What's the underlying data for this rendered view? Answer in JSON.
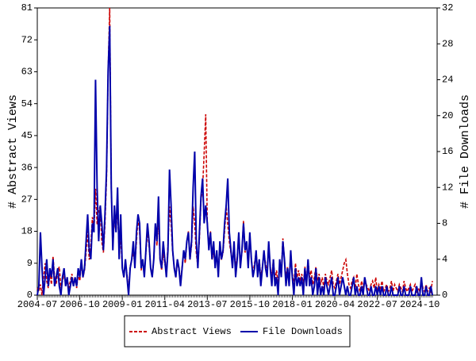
{
  "chart_data": {
    "type": "line",
    "categories": [
      "2004-07",
      null,
      null,
      null,
      null,
      null,
      null,
      null,
      null,
      null,
      null,
      null,
      null,
      null,
      null,
      null,
      null,
      null,
      null,
      null,
      null,
      null,
      null,
      null,
      null,
      null,
      null,
      "2006-10",
      null,
      null,
      null,
      null,
      null,
      null,
      null,
      null,
      null,
      null,
      null,
      null,
      null,
      null,
      null,
      null,
      null,
      null,
      null,
      null,
      null,
      null,
      null,
      null,
      null,
      null,
      "2009-01",
      null,
      null,
      null,
      null,
      null,
      null,
      null,
      null,
      null,
      null,
      null,
      null,
      null,
      null,
      null,
      null,
      null,
      null,
      null,
      null,
      null,
      null,
      null,
      null,
      null,
      null,
      "2011-04",
      null,
      null,
      null,
      null,
      null,
      null,
      null,
      null,
      null,
      null,
      null,
      null,
      null,
      null,
      null,
      null,
      null,
      null,
      null,
      null,
      null,
      null,
      null,
      null,
      null,
      null,
      "2013-07",
      null,
      null,
      null,
      null,
      null,
      null,
      null,
      null,
      null,
      null,
      null,
      null,
      null,
      null,
      null,
      null,
      null,
      null,
      null,
      null,
      null,
      null,
      null,
      null,
      null,
      null,
      "2015-10",
      null,
      null,
      null,
      null,
      null,
      null,
      null,
      null,
      null,
      null,
      null,
      null,
      null,
      null,
      null,
      null,
      null,
      null,
      null,
      null,
      null,
      null,
      null,
      null,
      null,
      null,
      "2018-01",
      null,
      null,
      null,
      null,
      null,
      null,
      null,
      null,
      null,
      null,
      null,
      null,
      null,
      null,
      null,
      null,
      null,
      null,
      null,
      null,
      null,
      null,
      null,
      null,
      null,
      null,
      "2020-04",
      null,
      null,
      null,
      null,
      null,
      null,
      null,
      null,
      null,
      null,
      null,
      null,
      null,
      null,
      null,
      null,
      null,
      null,
      null,
      null,
      null,
      null,
      null,
      null,
      null,
      null,
      "2022-07",
      null,
      null,
      null,
      null,
      null,
      null,
      null,
      null,
      null,
      null,
      null,
      null,
      null,
      null,
      null,
      null,
      null,
      null,
      null,
      null,
      null,
      null,
      null,
      null,
      null,
      null,
      "2024-10",
      null,
      null,
      null,
      null,
      null,
      null,
      null,
      null
    ],
    "series": [
      {
        "name": "Abstract Views",
        "color": "#cc0000",
        "style": "dashed",
        "axis": "y",
        "values": [
          2,
          1,
          3,
          0,
          5,
          9,
          4,
          2,
          6,
          3,
          11,
          5,
          3,
          7,
          8,
          2,
          4,
          6,
          3,
          5,
          2,
          4,
          6,
          3,
          5,
          2,
          6,
          4,
          9,
          5,
          7,
          12,
          18,
          10,
          14,
          22,
          18,
          30,
          20,
          24,
          25,
          15,
          12,
          20,
          33,
          63,
          81,
          30,
          14,
          22,
          18,
          25,
          12,
          16,
          8,
          5,
          9,
          6,
          1,
          8,
          10,
          12,
          9,
          15,
          22,
          18,
          7,
          10,
          6,
          12,
          18,
          14,
          8,
          5,
          10,
          20,
          14,
          22,
          10,
          7,
          12,
          9,
          6,
          14,
          25,
          20,
          12,
          8,
          5,
          10,
          7,
          4,
          8,
          12,
          9,
          15,
          18,
          10,
          14,
          25,
          20,
          12,
          8,
          16,
          27,
          30,
          40,
          51,
          20,
          14,
          18,
          10,
          12,
          9,
          11,
          8,
          13,
          10,
          12,
          18,
          25,
          20,
          15,
          12,
          10,
          14,
          8,
          11,
          16,
          9,
          12,
          21,
          12,
          15,
          8,
          17,
          10,
          6,
          9,
          12,
          7,
          10,
          5,
          8,
          12,
          9,
          6,
          14,
          8,
          5,
          10,
          4,
          7,
          3,
          9,
          6,
          16,
          10,
          5,
          8,
          4,
          12,
          6,
          3,
          9,
          5,
          7,
          4,
          6,
          3,
          8,
          4,
          10,
          5,
          7,
          3,
          5,
          8,
          4,
          6,
          3,
          5,
          2,
          6,
          4,
          3,
          5,
          7,
          3,
          2,
          4,
          6,
          3,
          5,
          7,
          9,
          10,
          6,
          3,
          2,
          4,
          5,
          2,
          6,
          3,
          1,
          4,
          2,
          5,
          3,
          2,
          1,
          3,
          4,
          2,
          5,
          1,
          3,
          2,
          4,
          1,
          2,
          3,
          1,
          2,
          4,
          1,
          3,
          2,
          1,
          3,
          2,
          1,
          4,
          2,
          1,
          2,
          3,
          1,
          2,
          3,
          1,
          2,
          1,
          4,
          2,
          1,
          3,
          1,
          2,
          1,
          4
        ]
      },
      {
        "name": "File Downloads",
        "color": "#0000aa",
        "style": "solid",
        "axis": "y2",
        "values": [
          0,
          1,
          7,
          3,
          0,
          2,
          4,
          1,
          3,
          2,
          4,
          1,
          2,
          3,
          1,
          0,
          2,
          3,
          1,
          2,
          0,
          1,
          2,
          1,
          2,
          1,
          3,
          2,
          4,
          2,
          3,
          6,
          9,
          5,
          4,
          8,
          7,
          24,
          12,
          6,
          10,
          8,
          5,
          9,
          14,
          25,
          30,
          12,
          5,
          10,
          7,
          12,
          4,
          9,
          3,
          2,
          4,
          2,
          0,
          3,
          4,
          6,
          3,
          7,
          9,
          8,
          3,
          4,
          2,
          5,
          8,
          6,
          3,
          2,
          4,
          8,
          6,
          11,
          4,
          3,
          6,
          4,
          2,
          5,
          14,
          10,
          5,
          3,
          2,
          4,
          3,
          1,
          3,
          5,
          4,
          6,
          7,
          4,
          6,
          12,
          16,
          6,
          3,
          7,
          11,
          13,
          8,
          10,
          8,
          5,
          7,
          4,
          6,
          3,
          5,
          2,
          6,
          4,
          5,
          8,
          10,
          13,
          7,
          5,
          3,
          6,
          2,
          4,
          7,
          3,
          5,
          8,
          5,
          6,
          3,
          7,
          4,
          2,
          3,
          5,
          2,
          4,
          1,
          3,
          5,
          3,
          2,
          6,
          3,
          1,
          4,
          1,
          2,
          0,
          4,
          2,
          6,
          4,
          1,
          3,
          1,
          5,
          2,
          0,
          3,
          1,
          2,
          1,
          2,
          0,
          3,
          1,
          4,
          1,
          2,
          0,
          1,
          3,
          0,
          2,
          0,
          1,
          0,
          2,
          1,
          0,
          1,
          2,
          0,
          0,
          1,
          2,
          0,
          1,
          2,
          1,
          0,
          1,
          0,
          0,
          1,
          2,
          0,
          1,
          0,
          0,
          1,
          0,
          2,
          1,
          0,
          0,
          1,
          0,
          0,
          1,
          0,
          1,
          0,
          1,
          0,
          0,
          1,
          0,
          0,
          1,
          0,
          0,
          0,
          0,
          1,
          0,
          0,
          1,
          0,
          0,
          0,
          1,
          0,
          0,
          0,
          1,
          0,
          0,
          2,
          0,
          0,
          1,
          0,
          0,
          1,
          0
        ]
      }
    ],
    "y_label": "# Abstract Views",
    "y2_label": "# File Downloads",
    "ylim": [
      0,
      81
    ],
    "yticks": [
      0,
      9,
      18,
      27,
      36,
      45,
      54,
      63,
      72,
      81
    ],
    "y2lim": [
      0,
      32
    ],
    "y2ticks": [
      0,
      4,
      8,
      12,
      16,
      20,
      24,
      28,
      32
    ],
    "grid": false,
    "legend": "bottom"
  }
}
